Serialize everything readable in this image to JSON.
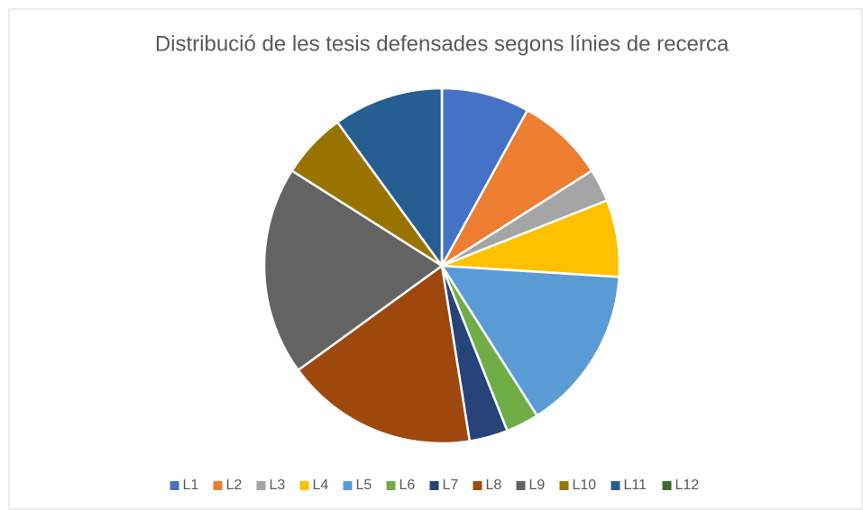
{
  "chart_data": {
    "type": "pie",
    "title": "Distribució de les tesis defensades segons línies de recerca",
    "categories": [
      "L1",
      "L2",
      "L3",
      "L4",
      "L5",
      "L6",
      "L7",
      "L8",
      "L9",
      "L10",
      "L11",
      "L12"
    ],
    "values": [
      8,
      8,
      3,
      7,
      15,
      3,
      3.5,
      17.5,
      19,
      6,
      10,
      0
    ],
    "colors": [
      "#4472c4",
      "#ed7d31",
      "#a5a5a5",
      "#ffc000",
      "#5b9bd5",
      "#70ad47",
      "#264478",
      "#9e480e",
      "#636363",
      "#997300",
      "#255e91",
      "#43682b"
    ],
    "legend": "bottom"
  }
}
